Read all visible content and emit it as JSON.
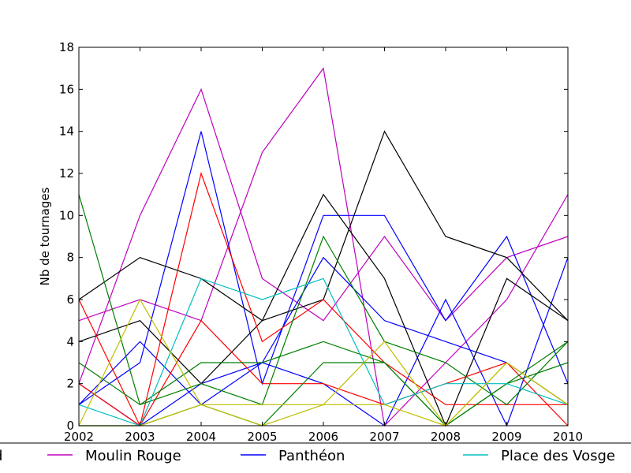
{
  "chart_data": {
    "type": "line",
    "title": "",
    "xlabel": "",
    "ylabel": "Nb de tournages",
    "x": [
      2002,
      2003,
      2004,
      2005,
      2006,
      2007,
      2008,
      2009,
      2010
    ],
    "xlim": [
      2002,
      2010
    ],
    "ylim": [
      0,
      18
    ],
    "yticks": [
      0,
      2,
      4,
      6,
      8,
      10,
      12,
      14,
      16,
      18
    ],
    "grid": false,
    "legend_position": "bottom",
    "series": [
      {
        "name": "Moulin Rouge",
        "color": "#bf00bf",
        "values": [
          2,
          10,
          16,
          7,
          5,
          9,
          5,
          8,
          9
        ]
      },
      {
        "name": "",
        "color": "#bf00bf",
        "values": [
          5,
          6,
          5,
          13,
          17,
          0,
          3,
          6,
          11
        ]
      },
      {
        "name": "Panthéon",
        "color": "#0000ff",
        "values": [
          1,
          3,
          14,
          2,
          10,
          10,
          5,
          9,
          2
        ]
      },
      {
        "name": "",
        "color": "#0000ff",
        "values": [
          1,
          4,
          1,
          3,
          8,
          5,
          4,
          3,
          1
        ]
      },
      {
        "name": "",
        "color": "#0000ff",
        "values": [
          2,
          0,
          2,
          3,
          2,
          0,
          6,
          0,
          8
        ]
      },
      {
        "name": "",
        "color": "#000000",
        "values": [
          6,
          8,
          7,
          5,
          6,
          14,
          9,
          8,
          5
        ]
      },
      {
        "name": "",
        "color": "#000000",
        "values": [
          4,
          5,
          2,
          5,
          11,
          7,
          0,
          7,
          5
        ]
      },
      {
        "name": "",
        "color": "#ff0000",
        "values": [
          6,
          0,
          12,
          4,
          6,
          3,
          1,
          1,
          1
        ]
      },
      {
        "name": "",
        "color": "#ff0000",
        "values": [
          2,
          0,
          5,
          2,
          2,
          1,
          2,
          3,
          0
        ]
      },
      {
        "name": "",
        "color": "#007f00",
        "values": [
          11,
          1,
          2,
          1,
          9,
          4,
          3,
          1,
          4
        ]
      },
      {
        "name": "",
        "color": "#007f00",
        "values": [
          3,
          1,
          3,
          3,
          4,
          3,
          0,
          2,
          4
        ]
      },
      {
        "name": "",
        "color": "#007f00",
        "values": [
          0,
          0,
          1,
          0,
          3,
          3,
          0,
          2,
          3
        ]
      },
      {
        "name": "Place des Vosges",
        "color": "#00bfbf",
        "values": [
          1,
          0,
          7,
          6,
          7,
          1,
          2,
          2,
          1
        ]
      },
      {
        "name": "",
        "color": "#bfbf00",
        "values": [
          0,
          6,
          1,
          1,
          1,
          4,
          0,
          3,
          1
        ]
      },
      {
        "name": "",
        "color": "#bfbf00",
        "values": [
          0,
          0,
          1,
          0,
          1,
          1,
          0,
          3,
          1
        ]
      }
    ],
    "legend": {
      "entries": [
        {
          "label": "d",
          "color": ""
        },
        {
          "label": "Moulin Rouge",
          "color": "#bf00bf"
        },
        {
          "label": "Panthéon",
          "color": "#0000ff"
        },
        {
          "label": "Place des Vosge",
          "color": "#00bfbf"
        }
      ]
    }
  }
}
